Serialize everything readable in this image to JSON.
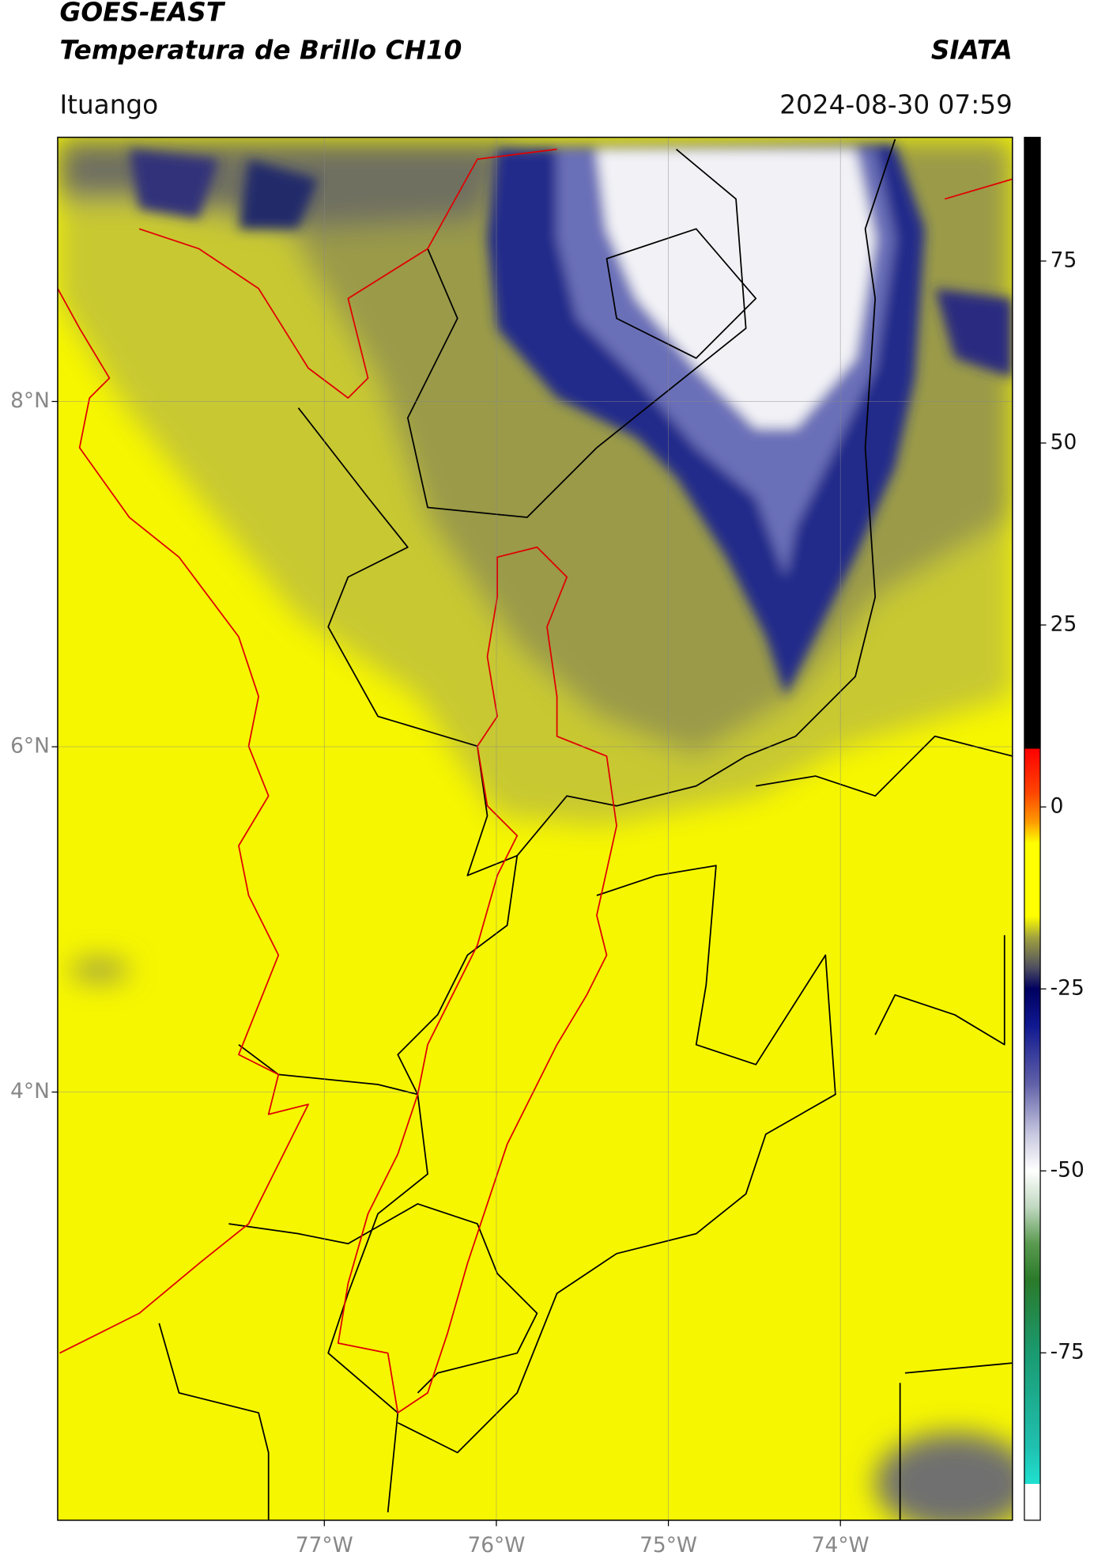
{
  "header": {
    "title": "GOES-EAST",
    "subtitle": "Temperatura de Brillo CH10",
    "source": "SIATA",
    "region": "Ituango",
    "timestamp": "2024-08-30 07:59"
  },
  "map": {
    "xlim": [
      -78.55,
      -73.0
    ],
    "ylim": [
      1.52,
      9.53
    ],
    "xticks": [
      {
        "value": -77,
        "label": "77°W"
      },
      {
        "value": -76,
        "label": "76°W"
      },
      {
        "value": -75,
        "label": "75°W"
      },
      {
        "value": -74,
        "label": "74°W"
      }
    ],
    "yticks": [
      {
        "value": 8,
        "label": "8°N"
      },
      {
        "value": 6,
        "label": "6°N"
      },
      {
        "value": 4,
        "label": "4°N"
      }
    ],
    "grid": true
  },
  "colorbar": {
    "lim": [
      -98,
      92
    ],
    "ticks": [
      75,
      50,
      25,
      0,
      -25,
      -50,
      -75
    ],
    "colormap": [
      {
        "value": -98,
        "color": "#ffffff"
      },
      {
        "value": -93,
        "color": "#ffffff"
      },
      {
        "value": -93,
        "color": "#20e0d0"
      },
      {
        "value": -88,
        "color": "#20c0b0"
      },
      {
        "value": -75,
        "color": "#1a9a70"
      },
      {
        "value": -65,
        "color": "#2a7a2a"
      },
      {
        "value": -60,
        "color": "#5a9a50"
      },
      {
        "value": -55,
        "color": "#c0d8c0"
      },
      {
        "value": -50,
        "color": "#ffffff"
      },
      {
        "value": -45,
        "color": "#c8c8e0"
      },
      {
        "value": -38,
        "color": "#6060a8"
      },
      {
        "value": -30,
        "color": "#101890"
      },
      {
        "value": -25,
        "color": "#000060"
      },
      {
        "value": -22,
        "color": "#505060"
      },
      {
        "value": -18,
        "color": "#a0a040"
      },
      {
        "value": -15,
        "color": "#ffff00"
      },
      {
        "value": -5,
        "color": "#ffff00"
      },
      {
        "value": -2,
        "color": "#ff9900"
      },
      {
        "value": 2,
        "color": "#ff4400"
      },
      {
        "value": 8,
        "color": "#ff0000"
      },
      {
        "value": 8,
        "color": "#000000"
      },
      {
        "value": 92,
        "color": "#000000"
      }
    ]
  }
}
